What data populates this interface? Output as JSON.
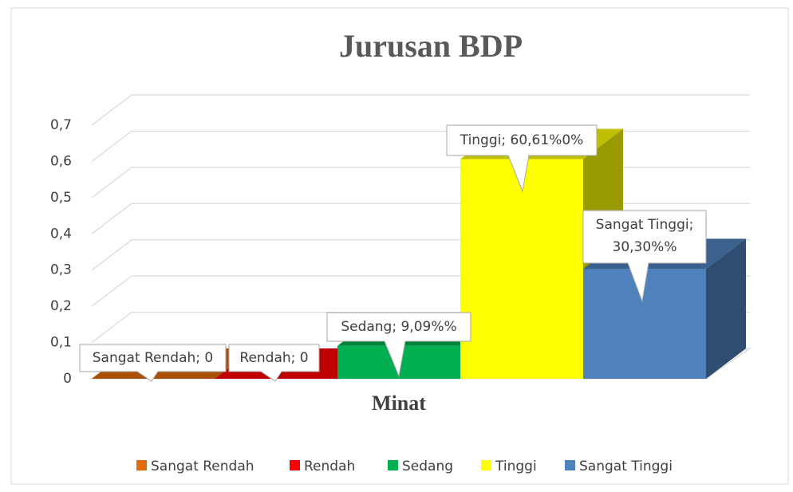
{
  "chart_data": {
    "type": "bar3d",
    "title": "Jurusan BDP",
    "categories": [
      "Minat"
    ],
    "series": [
      {
        "name": "Sangat Rendah",
        "color": "#e36c0a",
        "values": [
          0
        ],
        "value_labels": [
          "Sangat Rendah; 0"
        ]
      },
      {
        "name": "Rendah",
        "color": "#ff0000",
        "values": [
          0
        ],
        "value_labels": [
          "Rendah; 0"
        ]
      },
      {
        "name": "Sedang",
        "color": "#00b050",
        "values": [
          0.0909
        ],
        "value_labels": [
          "Sedang; 9,09%%"
        ]
      },
      {
        "name": "Tinggi",
        "color": "#ffff00",
        "values": [
          0.6061
        ],
        "value_labels": [
          "Tinggi; 60,61%0%"
        ]
      },
      {
        "name": "Sangat Tinggi",
        "color": "#4f81bd",
        "values": [
          0.303
        ],
        "value_labels": [
          "Sangat Tinggi; 30,30%%"
        ]
      }
    ],
    "ylim": [
      0,
      0.7
    ],
    "yticks": [
      0,
      {
        "value": 0.1,
        "label": "0,1"
      },
      {
        "value": 0.2,
        "label": "0,2"
      },
      {
        "value": 0.3,
        "label": "0,3"
      },
      {
        "value": 0.4,
        "label": "0,4"
      },
      {
        "value": 0.5,
        "label": "0,5"
      },
      {
        "value": 0.6,
        "label": "0,6"
      },
      {
        "value": 0.7,
        "label": "0,7"
      }
    ],
    "grid": true,
    "legend": "bottom"
  }
}
